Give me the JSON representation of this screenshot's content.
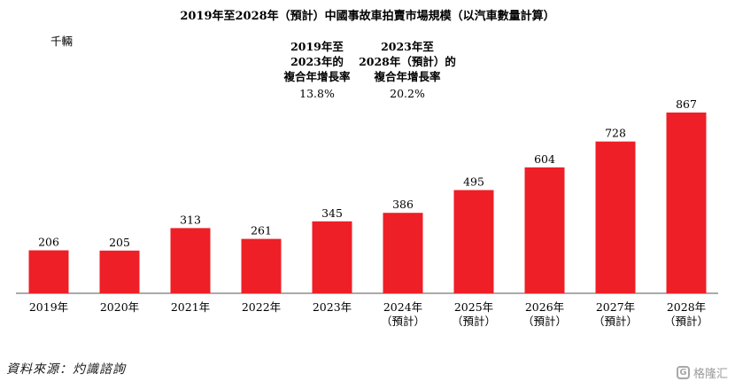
{
  "chart_data": {
    "type": "bar",
    "title": "2019年至2028年（預計）中國事故車拍賣市場規模（以汽車數量計算）",
    "unit_label": "千輛",
    "categories": [
      [
        "2019年"
      ],
      [
        "2020年"
      ],
      [
        "2021年"
      ],
      [
        "2022年"
      ],
      [
        "2023年"
      ],
      [
        "2024年",
        "（預計）"
      ],
      [
        "2025年",
        "（預計）"
      ],
      [
        "2026年",
        "（預計）"
      ],
      [
        "2027年",
        "（預計）"
      ],
      [
        "2028年",
        "（預計）"
      ]
    ],
    "values": [
      206,
      205,
      313,
      261,
      345,
      386,
      495,
      604,
      728,
      867
    ],
    "ylim": [
      0,
      867
    ],
    "bar_color": "#ee1f26",
    "grid": false,
    "annotations": [
      {
        "lines": [
          "2019年至",
          "2023年的",
          "複合年增長率"
        ],
        "value": "13.8%"
      },
      {
        "lines": [
          "2023年至",
          "2028年（預計）的",
          "複合年增長率"
        ],
        "value": "20.2%"
      }
    ]
  },
  "source_note": "資料來源：灼識諮詢",
  "watermark": {
    "logo": "G",
    "text": "格隆汇"
  }
}
